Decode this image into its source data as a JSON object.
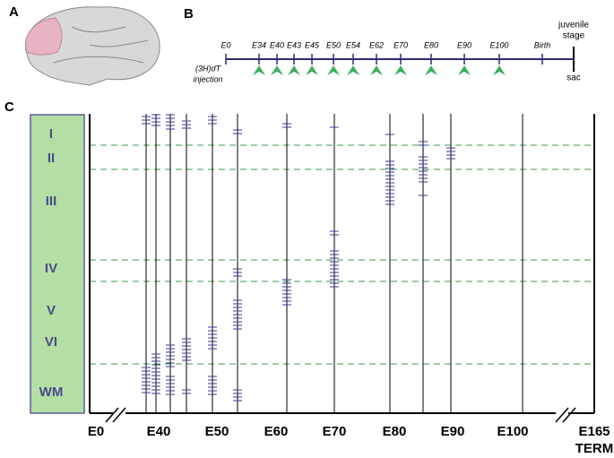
{
  "panels": {
    "a": "A",
    "b": "B",
    "c": "C"
  },
  "timeline": {
    "labels": [
      "E0",
      "E34",
      "E40",
      "E43",
      "E45",
      "E50",
      "E54",
      "E62",
      "E70",
      "E80",
      "E90",
      "E100",
      "Birth"
    ],
    "end_label": [
      "juvenile",
      "stage"
    ],
    "sac": "sac",
    "injection": [
      "(3H)dT",
      "injection"
    ]
  },
  "layers": [
    "I",
    "II",
    "III",
    "IV",
    "V",
    "VI",
    "WM"
  ],
  "x_labels": [
    "E0",
    "E40",
    "E50",
    "E60",
    "E70",
    "E80",
    "E90",
    "E100",
    "E165"
  ],
  "term": "TERM"
}
